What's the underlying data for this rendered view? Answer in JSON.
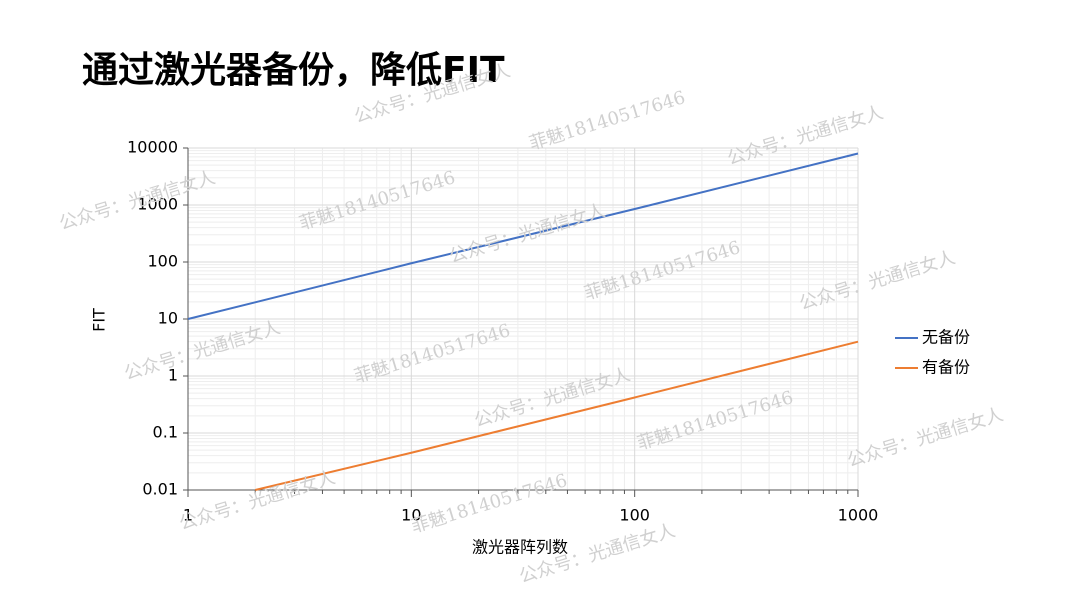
{
  "chart_data": {
    "type": "line",
    "title": "通过激光器备份，降低FIT",
    "x_label": "激光器阵列数",
    "y_label": "FIT",
    "x": [
      1,
      2,
      10,
      100,
      1000
    ],
    "series": [
      {
        "name": "无备份",
        "color": "#4472c4",
        "values": [
          10,
          19.6,
          95,
          850,
          8000
        ]
      },
      {
        "name": "有备份",
        "color": "#ed7d31",
        "values": [
          null,
          0.01,
          0.045,
          0.42,
          4
        ]
      }
    ],
    "xlim": [
      1,
      1000
    ],
    "xticks": [
      1,
      10,
      100,
      1000
    ],
    "ylim": [
      0.01,
      10000
    ],
    "yticks": [
      0.01,
      0.1,
      1,
      10,
      100,
      1000,
      10000
    ],
    "xscale": "log",
    "yscale": "log",
    "grid": true,
    "legend": "right"
  },
  "watermarks": [
    "公众号：光通信女人",
    "菲魅18140517646"
  ]
}
